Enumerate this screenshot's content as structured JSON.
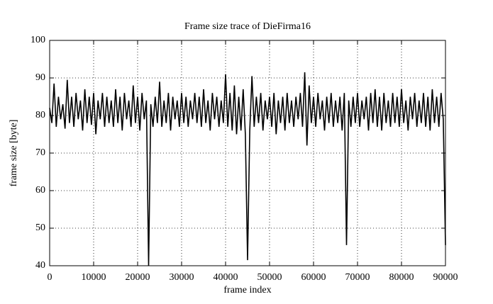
{
  "chart_data": {
    "type": "line",
    "title": "Frame size trace of DieFirma16",
    "x_label": "frame index",
    "y_label": "frame size [byte]",
    "color": "#000000",
    "grid": true,
    "xlim": [
      0,
      90000
    ],
    "ylim": [
      40,
      100
    ],
    "xticks": [
      0,
      10000,
      20000,
      30000,
      40000,
      50000,
      60000,
      70000,
      80000,
      90000
    ],
    "yticks": [
      40,
      50,
      60,
      70,
      80,
      90,
      100
    ],
    "x": [
      0,
      500,
      1000,
      1500,
      2000,
      2500,
      3000,
      3500,
      4000,
      4500,
      5000,
      5500,
      6000,
      6500,
      7000,
      7500,
      8000,
      8500,
      9000,
      9500,
      10000,
      10500,
      11000,
      11500,
      12000,
      12500,
      13000,
      13500,
      14000,
      14500,
      15000,
      15500,
      16000,
      16500,
      17000,
      17500,
      18000,
      18500,
      19000,
      19500,
      20000,
      20500,
      21000,
      21500,
      22000,
      22500,
      23000,
      23500,
      24000,
      24500,
      25000,
      25500,
      26000,
      26500,
      27000,
      27500,
      28000,
      28500,
      29000,
      29500,
      30000,
      30500,
      31000,
      31500,
      32000,
      32500,
      33000,
      33500,
      34000,
      34500,
      35000,
      35500,
      36000,
      36500,
      37000,
      37500,
      38000,
      38500,
      39000,
      39500,
      40000,
      40500,
      41000,
      41500,
      42000,
      42500,
      43000,
      43500,
      44000,
      44500,
      45000,
      45500,
      46000,
      46500,
      47000,
      47500,
      48000,
      48500,
      49000,
      49500,
      50000,
      50500,
      51000,
      51500,
      52000,
      52500,
      53000,
      53500,
      54000,
      54500,
      55000,
      55500,
      56000,
      56500,
      57000,
      57500,
      58000,
      58500,
      59000,
      59500,
      60000,
      60500,
      61000,
      61500,
      62000,
      62500,
      63000,
      63500,
      64000,
      64500,
      65000,
      65500,
      66000,
      66500,
      67000,
      67500,
      68000,
      68500,
      69000,
      69500,
      70000,
      70500,
      71000,
      71500,
      72000,
      72500,
      73000,
      73500,
      74000,
      74500,
      75000,
      75500,
      76000,
      76500,
      77000,
      77500,
      78000,
      78500,
      79000,
      79500,
      80000,
      80500,
      81000,
      81500,
      82000,
      82500,
      83000,
      83500,
      84000,
      84500,
      85000,
      85500,
      86000,
      86500,
      87000,
      87500,
      88000,
      88500,
      89000,
      89500,
      90000
    ],
    "values": [
      82,
      78,
      88.5,
      77,
      85,
      79,
      83,
      76.5,
      89.5,
      78,
      85,
      77,
      86,
      79,
      84,
      76,
      87,
      78,
      85,
      77.5,
      86,
      75,
      84,
      79,
      86,
      77,
      85,
      78,
      84,
      77,
      87,
      78,
      85,
      76,
      86,
      79,
      84,
      77,
      88,
      78,
      85,
      76,
      86,
      79,
      84,
      40,
      83,
      77,
      85,
      78,
      89,
      77,
      84,
      78,
      86,
      76,
      85,
      79,
      84,
      77,
      86,
      78,
      85,
      77,
      84,
      79,
      86,
      78,
      85,
      77,
      87,
      78,
      84,
      76,
      86,
      79,
      85,
      77,
      84,
      78,
      91,
      77,
      86,
      76,
      88,
      75,
      85,
      76,
      87,
      75,
      41.5,
      76,
      90.5,
      77,
      85,
      78,
      86,
      76,
      84,
      79,
      85,
      77,
      86,
      75,
      84,
      78,
      85,
      76,
      86,
      78,
      84,
      77,
      85,
      79,
      86,
      77,
      91.5,
      72,
      88,
      78,
      85,
      77,
      86,
      79,
      84,
      76,
      85,
      78,
      86,
      77,
      84,
      78,
      85,
      76,
      86,
      45.5,
      84,
      77,
      85,
      78,
      86,
      77,
      84,
      79,
      85,
      76,
      86,
      78,
      87,
      77,
      85,
      76,
      86,
      78,
      84,
      77,
      86,
      78,
      85,
      77,
      87,
      78,
      84,
      76,
      85,
      79,
      86,
      77,
      84,
      78,
      86,
      77,
      85,
      76,
      87,
      78,
      85,
      77,
      86,
      79,
      45.5
    ]
  }
}
